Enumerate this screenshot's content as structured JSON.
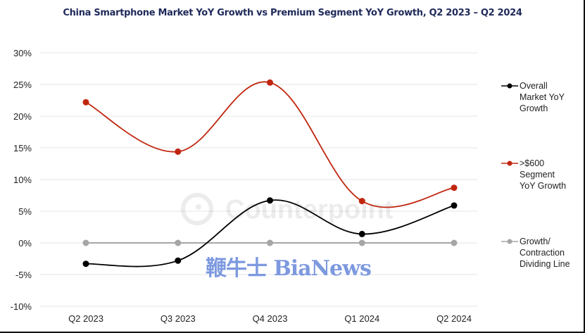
{
  "chart_data": {
    "type": "line",
    "title": "China Smartphone Market YoY Growth vs Premium Segment YoY Growth, Q2 2023 – Q2 2024",
    "xlabel": "",
    "ylabel": "",
    "categories": [
      "Q2 2023",
      "Q3 2023",
      "Q4 2023",
      "Q1 2024",
      "Q2 2024"
    ],
    "ylim": [
      -10,
      30
    ],
    "yticks": [
      30,
      25,
      20,
      15,
      10,
      5,
      0,
      -5,
      -10
    ],
    "ytick_labels": [
      "30%",
      "25%",
      "20%",
      "15%",
      "10%",
      "5%",
      "0%",
      "-5%",
      "-10%"
    ],
    "grid": true,
    "legend_position": "right",
    "series": [
      {
        "name": "Overall Market YoY Growth",
        "color": "#000000",
        "values": [
          -3.3,
          -2.8,
          6.7,
          1.4,
          5.9
        ]
      },
      {
        "name": ">$600 Segment YoY Growth",
        "color": "#c0260f",
        "values": [
          22.2,
          14.4,
          25.3,
          6.6,
          8.7
        ]
      },
      {
        "name": "Growth/ Contraction Dividing Line",
        "color": "#a6a6a6",
        "values": [
          0,
          0,
          0,
          0,
          0
        ]
      }
    ],
    "legend_lines": [
      [
        "Overall",
        "Market YoY",
        "Growth"
      ],
      [
        ">$600",
        "Segment",
        "YoY Growth"
      ],
      [
        "Growth/",
        "Contraction",
        "Dividing Line"
      ]
    ],
    "watermarks": [
      "Counterpoint",
      "鞭牛士 BiaNews"
    ]
  }
}
